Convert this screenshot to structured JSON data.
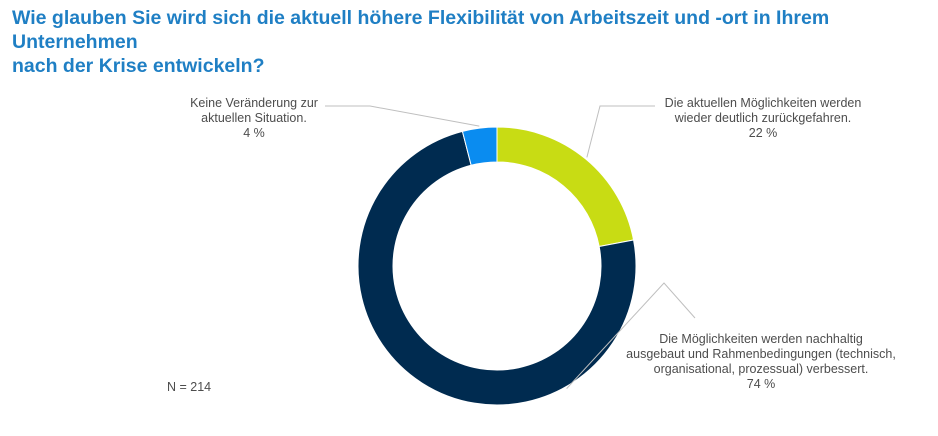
{
  "chart_data": {
    "type": "pie",
    "donut": true,
    "title_lines": [
      "Wie glauben Sie wird sich die aktuell höhere Flexibilität von Arbeitszeit und -ort in Ihrem Unternehmen",
      "nach der Krise entwickeln?"
    ],
    "slices": [
      {
        "label_lines": [
          "Die aktuellen Möglichkeiten werden",
          "wieder deutlich zurückgefahren."
        ],
        "value": 22,
        "value_label": "22 %",
        "color": "#c8dc14"
      },
      {
        "label_lines": [
          "Die Möglichkeiten werden nachhaltig",
          "ausgebaut und Rahmenbedingungen (technisch,",
          "organisational, prozessual) verbessert."
        ],
        "value": 74,
        "value_label": "74 %",
        "color": "#002b50"
      },
      {
        "label_lines": [
          "Keine Veränderung zur",
          "aktuellen Situation."
        ],
        "value": 4,
        "value_label": "4 %",
        "color": "#0a8cf0"
      }
    ],
    "sample_note": "N = 214",
    "leader_color": "#bfbfbf"
  }
}
